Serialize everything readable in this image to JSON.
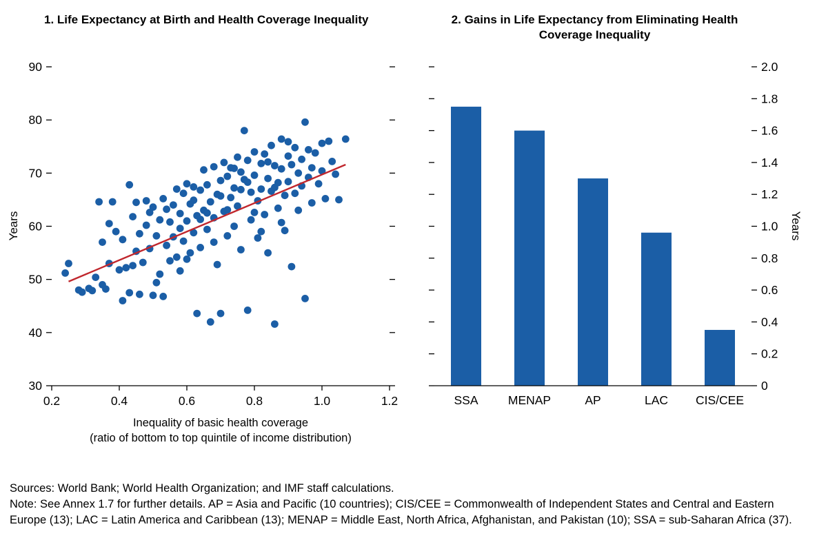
{
  "page": {
    "background": "#ffffff"
  },
  "footer": {
    "sources": "Sources: World Bank; World Health Organization; and IMF staff calculations.",
    "note": "Note: See Annex 1.7 for further details. AP = Asia and Pacific (10 countries); CIS/CEE = Commonwealth of Independent States and Central and Eastern Europe (13); LAC = Latin America and Caribbean (13); MENAP = Middle East, North Africa, Afghanistan, and Pakistan (10); SSA = sub-Saharan Africa (37)."
  },
  "chart_data": [
    {
      "type": "scatter",
      "title": "1. Life Expectancy at Birth and Health Coverage Inequality",
      "ylabel": "Years",
      "xlabel_line1": "Inequality of basic health coverage",
      "xlabel_line2": "(ratio of bottom to top quintile of income distribution)",
      "xlim": [
        0.2,
        1.2
      ],
      "ylim": [
        30,
        90
      ],
      "xticks": [
        "0.2",
        "0.4",
        "0.6",
        "0.8",
        "1.0",
        "1.2"
      ],
      "yticks": [
        "30",
        "40",
        "50",
        "60",
        "70",
        "80",
        "90"
      ],
      "point_color": "#1b5ea6",
      "trendline": {
        "color": "#c0272d",
        "x1": 0.25,
        "y1": 49.6,
        "x2": 1.07,
        "y2": 71.6
      },
      "points": [
        [
          0.24,
          51.2
        ],
        [
          0.25,
          53.0
        ],
        [
          0.28,
          48.0
        ],
        [
          0.29,
          47.6
        ],
        [
          0.31,
          48.3
        ],
        [
          0.32,
          47.9
        ],
        [
          0.33,
          50.4
        ],
        [
          0.34,
          64.6
        ],
        [
          0.35,
          57.0
        ],
        [
          0.35,
          49.0
        ],
        [
          0.36,
          48.2
        ],
        [
          0.37,
          53.0
        ],
        [
          0.37,
          60.5
        ],
        [
          0.38,
          64.6
        ],
        [
          0.39,
          59.0
        ],
        [
          0.4,
          51.8
        ],
        [
          0.41,
          46.0
        ],
        [
          0.41,
          57.5
        ],
        [
          0.42,
          52.2
        ],
        [
          0.43,
          67.8
        ],
        [
          0.43,
          47.5
        ],
        [
          0.44,
          61.8
        ],
        [
          0.44,
          52.6
        ],
        [
          0.45,
          64.5
        ],
        [
          0.45,
          55.3
        ],
        [
          0.46,
          47.2
        ],
        [
          0.46,
          58.6
        ],
        [
          0.47,
          53.2
        ],
        [
          0.48,
          60.2
        ],
        [
          0.48,
          64.8
        ],
        [
          0.49,
          55.8
        ],
        [
          0.49,
          62.6
        ],
        [
          0.5,
          63.6
        ],
        [
          0.5,
          47.0
        ],
        [
          0.51,
          58.2
        ],
        [
          0.51,
          49.4
        ],
        [
          0.52,
          61.2
        ],
        [
          0.52,
          51.0
        ],
        [
          0.53,
          65.2
        ],
        [
          0.53,
          46.8
        ],
        [
          0.54,
          56.4
        ],
        [
          0.54,
          63.2
        ],
        [
          0.55,
          60.8
        ],
        [
          0.55,
          53.5
        ],
        [
          0.56,
          64.0
        ],
        [
          0.56,
          58.0
        ],
        [
          0.57,
          67.0
        ],
        [
          0.57,
          54.2
        ],
        [
          0.58,
          62.4
        ],
        [
          0.58,
          51.6
        ],
        [
          0.58,
          59.6
        ],
        [
          0.59,
          66.2
        ],
        [
          0.59,
          57.2
        ],
        [
          0.6,
          68.0
        ],
        [
          0.6,
          61.0
        ],
        [
          0.6,
          53.8
        ],
        [
          0.61,
          64.2
        ],
        [
          0.61,
          55.0
        ],
        [
          0.62,
          67.4
        ],
        [
          0.62,
          58.8
        ],
        [
          0.62,
          64.9
        ],
        [
          0.63,
          43.6
        ],
        [
          0.63,
          62.0
        ],
        [
          0.64,
          66.8
        ],
        [
          0.64,
          56.0
        ],
        [
          0.64,
          61.3
        ],
        [
          0.65,
          70.6
        ],
        [
          0.65,
          63.0
        ],
        [
          0.66,
          67.8
        ],
        [
          0.66,
          59.4
        ],
        [
          0.66,
          62.5
        ],
        [
          0.67,
          42.0
        ],
        [
          0.67,
          64.6
        ],
        [
          0.68,
          71.2
        ],
        [
          0.68,
          61.6
        ],
        [
          0.68,
          57.0
        ],
        [
          0.69,
          66.0
        ],
        [
          0.69,
          52.8
        ],
        [
          0.7,
          43.6
        ],
        [
          0.7,
          68.6
        ],
        [
          0.7,
          65.7
        ],
        [
          0.71,
          72.0
        ],
        [
          0.71,
          62.8
        ],
        [
          0.72,
          69.4
        ],
        [
          0.72,
          58.2
        ],
        [
          0.72,
          63.1
        ],
        [
          0.73,
          71.0
        ],
        [
          0.73,
          65.4
        ],
        [
          0.74,
          67.2
        ],
        [
          0.74,
          60.0
        ],
        [
          0.74,
          70.9
        ],
        [
          0.75,
          73.0
        ],
        [
          0.75,
          63.8
        ],
        [
          0.76,
          70.2
        ],
        [
          0.76,
          55.6
        ],
        [
          0.76,
          66.9
        ],
        [
          0.77,
          78.0
        ],
        [
          0.77,
          68.8
        ],
        [
          0.78,
          44.2
        ],
        [
          0.78,
          72.4
        ],
        [
          0.78,
          68.3
        ],
        [
          0.79,
          66.4
        ],
        [
          0.79,
          61.2
        ],
        [
          0.8,
          74.0
        ],
        [
          0.8,
          69.6
        ],
        [
          0.8,
          62.6
        ],
        [
          0.81,
          64.8
        ],
        [
          0.81,
          57.8
        ],
        [
          0.82,
          71.8
        ],
        [
          0.82,
          67.0
        ],
        [
          0.82,
          59.0
        ],
        [
          0.83,
          73.6
        ],
        [
          0.83,
          62.2
        ],
        [
          0.84,
          69.0
        ],
        [
          0.84,
          55.0
        ],
        [
          0.84,
          72.1
        ],
        [
          0.85,
          75.2
        ],
        [
          0.85,
          66.6
        ],
        [
          0.86,
          41.6
        ],
        [
          0.86,
          71.4
        ],
        [
          0.86,
          67.3
        ],
        [
          0.87,
          68.2
        ],
        [
          0.87,
          63.4
        ],
        [
          0.88,
          76.4
        ],
        [
          0.88,
          70.8
        ],
        [
          0.88,
          60.7
        ],
        [
          0.89,
          65.8
        ],
        [
          0.89,
          59.2
        ],
        [
          0.9,
          73.2
        ],
        [
          0.9,
          68.4
        ],
        [
          0.9,
          75.9
        ],
        [
          0.91,
          71.6
        ],
        [
          0.91,
          52.4
        ],
        [
          0.92,
          74.8
        ],
        [
          0.92,
          66.2
        ],
        [
          0.93,
          70.0
        ],
        [
          0.93,
          63.0
        ],
        [
          0.94,
          72.6
        ],
        [
          0.94,
          67.6
        ],
        [
          0.95,
          79.6
        ],
        [
          0.95,
          46.4
        ],
        [
          0.96,
          74.4
        ],
        [
          0.96,
          69.2
        ],
        [
          0.97,
          71.0
        ],
        [
          0.97,
          64.4
        ],
        [
          0.98,
          73.8
        ],
        [
          0.99,
          68.0
        ],
        [
          1.0,
          75.6
        ],
        [
          1.0,
          70.4
        ],
        [
          1.01,
          65.2
        ],
        [
          1.02,
          76.0
        ],
        [
          1.03,
          72.2
        ],
        [
          1.04,
          69.8
        ],
        [
          1.05,
          65.0
        ],
        [
          1.07,
          76.4
        ]
      ]
    },
    {
      "type": "bar",
      "title": "2. Gains in Life Expectancy from Eliminating Health Coverage Inequality",
      "ylabel": "Years",
      "categories": [
        "SSA",
        "MENAP",
        "AP",
        "LAC",
        "CIS/CEE"
      ],
      "values": [
        1.75,
        1.6,
        1.3,
        0.96,
        0.35
      ],
      "ylim": [
        0,
        2.0
      ],
      "yticks": [
        "0",
        "0.2",
        "0.4",
        "0.6",
        "0.8",
        "1.0",
        "1.2",
        "1.4",
        "1.6",
        "1.8",
        "2.0"
      ],
      "bar_color": "#1b5ea6"
    }
  ]
}
